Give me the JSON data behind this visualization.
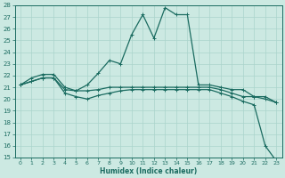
{
  "xlabel": "Humidex (Indice chaleur)",
  "xlim": [
    -0.5,
    23.5
  ],
  "ylim": [
    15,
    28
  ],
  "xticks": [
    0,
    1,
    2,
    3,
    4,
    5,
    6,
    7,
    8,
    9,
    10,
    11,
    12,
    13,
    14,
    15,
    16,
    17,
    18,
    19,
    20,
    21,
    22,
    23
  ],
  "yticks": [
    15,
    16,
    17,
    18,
    19,
    20,
    21,
    22,
    23,
    24,
    25,
    26,
    27,
    28
  ],
  "bg_color": "#cce9e2",
  "grid_color": "#aad4cc",
  "line_color": "#1a6b60",
  "line1_x": [
    0,
    1,
    2,
    3,
    4,
    5,
    6,
    7,
    8,
    9,
    10,
    11,
    12,
    13,
    14,
    15,
    16,
    17,
    18,
    19,
    20,
    21,
    22,
    23
  ],
  "line1_y": [
    21.2,
    21.8,
    22.1,
    22.1,
    21.0,
    20.7,
    21.2,
    22.2,
    23.3,
    23.0,
    25.5,
    27.2,
    25.2,
    27.8,
    27.2,
    27.2,
    21.2,
    21.2,
    21.0,
    20.8,
    20.8,
    20.2,
    20.2,
    19.7
  ],
  "line2_x": [
    0,
    1,
    2,
    3,
    4,
    5,
    6,
    7,
    8,
    9,
    10,
    11,
    12,
    13,
    14,
    15,
    16,
    17,
    18,
    19,
    20,
    21,
    22,
    23
  ],
  "line2_y": [
    21.2,
    21.5,
    21.8,
    21.8,
    20.8,
    20.7,
    20.7,
    20.8,
    21.0,
    21.0,
    21.0,
    21.0,
    21.0,
    21.0,
    21.0,
    21.0,
    21.0,
    21.0,
    20.8,
    20.5,
    20.2,
    20.2,
    20.0,
    19.7
  ],
  "line3_x": [
    0,
    1,
    2,
    3,
    4,
    5,
    6,
    7,
    8,
    9,
    10,
    11,
    12,
    13,
    14,
    15,
    16,
    17,
    18,
    19,
    20,
    21,
    22,
    23
  ],
  "line3_y": [
    21.2,
    21.5,
    21.8,
    21.8,
    20.5,
    20.2,
    20.0,
    20.3,
    20.5,
    20.7,
    20.8,
    20.8,
    20.8,
    20.8,
    20.8,
    20.8,
    20.8,
    20.8,
    20.5,
    20.2,
    19.8,
    19.5,
    16.0,
    14.7
  ]
}
